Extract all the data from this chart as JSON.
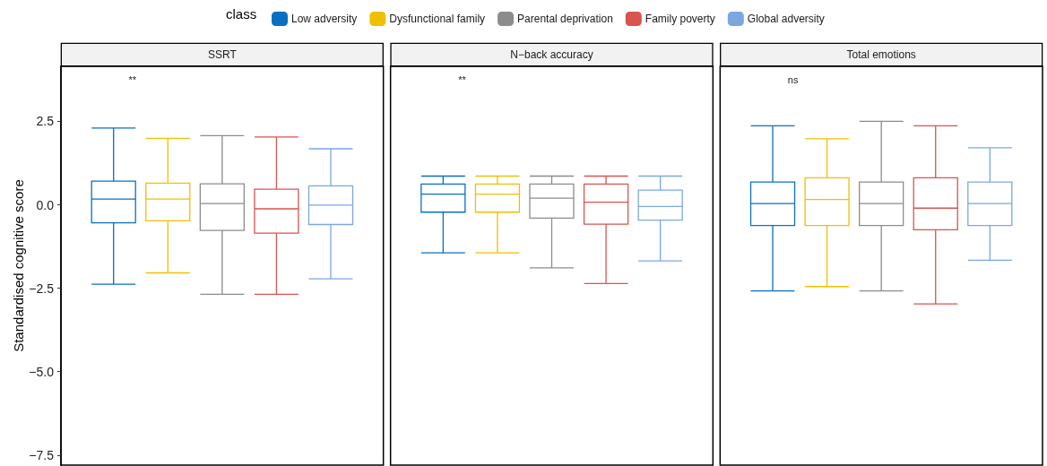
{
  "chart_data": {
    "type": "box",
    "ylabel": "Standardised cognitive score",
    "legend_title": "class",
    "legend": "top",
    "grid": false,
    "categories": [
      "SSRT",
      "N−back accuracy",
      "Total emotions"
    ],
    "ylim": [
      -7.8,
      4.15
    ],
    "yticks": [
      {
        "value": -7.5,
        "label": "−7.5"
      },
      {
        "value": -5,
        "label": "−5.0"
      },
      {
        "value": -2.5,
        "label": "−2.5"
      },
      {
        "value": 0,
        "label": "0.0"
      },
      {
        "value": 2.5,
        "label": "2.5"
      }
    ],
    "annotations": [
      "**",
      "**",
      "ns"
    ],
    "series": [
      {
        "name": "Low adversity",
        "color": "#0a6fc2",
        "boxes": [
          {
            "low": -2.38,
            "q1": -0.54,
            "median": 0.17,
            "q3": 0.71,
            "high": 2.3
          },
          {
            "low": -1.44,
            "q1": -0.22,
            "median": 0.32,
            "q3": 0.62,
            "high": 0.86
          },
          {
            "low": -2.58,
            "q1": -0.62,
            "median": 0.04,
            "q3": 0.68,
            "high": 2.37
          }
        ]
      },
      {
        "name": "Dysfunctional family",
        "color": "#f0c000",
        "boxes": [
          {
            "low": -2.04,
            "q1": -0.48,
            "median": 0.17,
            "q3": 0.65,
            "high": 1.99
          },
          {
            "low": -1.44,
            "q1": -0.22,
            "median": 0.32,
            "q3": 0.62,
            "high": 0.86
          },
          {
            "low": -2.45,
            "q1": -0.62,
            "median": 0.16,
            "q3": 0.81,
            "high": 1.98
          }
        ]
      },
      {
        "name": "Parental deprivation",
        "color": "#8c8c8c",
        "boxes": [
          {
            "low": -2.68,
            "q1": -0.77,
            "median": 0.04,
            "q3": 0.63,
            "high": 2.07
          },
          {
            "low": -1.89,
            "q1": -0.4,
            "median": 0.2,
            "q3": 0.62,
            "high": 0.86
          },
          {
            "low": -2.58,
            "q1": -0.62,
            "median": 0.04,
            "q3": 0.68,
            "high": 2.5
          }
        ]
      },
      {
        "name": "Family poverty",
        "color": "#d9534f",
        "boxes": [
          {
            "low": -2.68,
            "q1": -0.85,
            "median": -0.12,
            "q3": 0.47,
            "high": 2.03
          },
          {
            "low": -2.36,
            "q1": -0.58,
            "median": 0.08,
            "q3": 0.62,
            "high": 0.86
          },
          {
            "low": -2.97,
            "q1": -0.75,
            "median": -0.1,
            "q3": 0.81,
            "high": 2.37
          }
        ]
      },
      {
        "name": "Global adversity",
        "color": "#7ba7e0",
        "boxes": [
          {
            "low": -2.22,
            "q1": -0.59,
            "median": -0.01,
            "q3": 0.57,
            "high": 1.68
          },
          {
            "low": -1.68,
            "q1": -0.46,
            "median": -0.05,
            "q3": 0.44,
            "high": 0.86
          },
          {
            "low": -1.66,
            "q1": -0.62,
            "median": 0.04,
            "q3": 0.68,
            "high": 1.71
          }
        ]
      }
    ]
  }
}
